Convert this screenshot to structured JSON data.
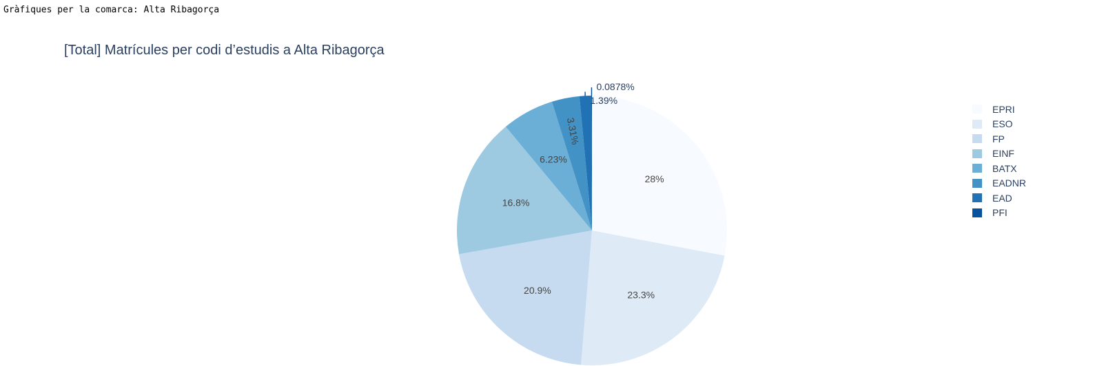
{
  "page": {
    "header": "Gràfiques per la comarca: Alta Ribagorça"
  },
  "chart_data": {
    "type": "pie",
    "title": "[Total] Matrícules per codi d’estudis a Alta Ribagorça",
    "labels": [
      "EPRI",
      "ESO",
      "FP",
      "EINF",
      "BATX",
      "EADNR",
      "EAD",
      "PFI"
    ],
    "values": [
      28,
      23.3,
      20.9,
      16.8,
      6.23,
      3.31,
      1.39,
      0.0878
    ],
    "text_labels": [
      "28%",
      "23.3%",
      "20.9%",
      "16.8%",
      "6.23%",
      "3.31%",
      "1.39%",
      "0.0878%"
    ],
    "colors": [
      "#f7fbff",
      "#deebf7",
      "#c6dbef",
      "#9ecae1",
      "#6baed6",
      "#4292c6",
      "#2171b5",
      "#08519c"
    ],
    "legend_position": "right",
    "direction": "clockwise",
    "rotation_start": "top"
  }
}
